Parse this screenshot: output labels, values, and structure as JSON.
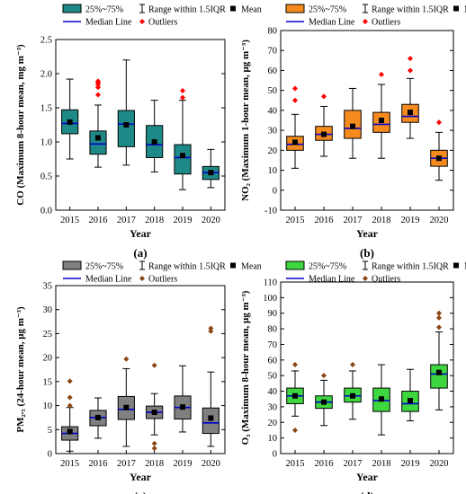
{
  "legend_labels": {
    "box": "25%~75%",
    "range": "Range within 1.5IQR",
    "mean": "Mean",
    "median": "Median Line",
    "outliers": "Outliers"
  },
  "chart_data": [
    {
      "type": "box",
      "panel_label": "(a)",
      "xlabel": "Year",
      "ylabel": "CO (Maximum 8-hour mean, mg m⁻³)",
      "categories": [
        "2015",
        "2016",
        "2017",
        "2018",
        "2019",
        "2020"
      ],
      "ylim": [
        0.0,
        2.5
      ],
      "yticks": [
        "0.0",
        "0.5",
        "1.0",
        "1.5",
        "2.0",
        "2.5"
      ],
      "colors": {
        "box": "#1e8a87",
        "median": "#0000cc",
        "outlier": "#ff0000"
      },
      "boxes": [
        {
          "min": 0.75,
          "q1": 1.12,
          "median": 1.27,
          "q3": 1.47,
          "max": 1.92,
          "mean": 1.29,
          "outliers": []
        },
        {
          "min": 0.63,
          "q1": 0.82,
          "median": 0.97,
          "q3": 1.16,
          "max": 1.54,
          "mean": 1.06,
          "outliers": [
            1.69,
            1.8,
            1.84,
            1.87,
            1.89
          ]
        },
        {
          "min": 0.66,
          "q1": 0.93,
          "median": 1.26,
          "q3": 1.46,
          "max": 2.2,
          "mean": 1.25,
          "outliers": []
        },
        {
          "min": 0.56,
          "q1": 0.77,
          "median": 0.96,
          "q3": 1.24,
          "max": 1.61,
          "mean": 1.0,
          "outliers": []
        },
        {
          "min": 0.3,
          "q1": 0.53,
          "median": 0.77,
          "q3": 0.96,
          "max": 1.61,
          "mean": 0.8,
          "outliers": [
            1.65,
            1.75
          ]
        },
        {
          "min": 0.33,
          "q1": 0.45,
          "median": 0.55,
          "q3": 0.64,
          "max": 0.89,
          "mean": 0.55,
          "outliers": []
        }
      ]
    },
    {
      "type": "box",
      "panel_label": "(b)",
      "xlabel": "Year",
      "ylabel": "NO₂ (Maximum 1-hour mean, μg m⁻³)",
      "categories": [
        "2015",
        "2016",
        "2017",
        "2018",
        "2019",
        "2020"
      ],
      "ylim": [
        -10,
        80
      ],
      "yticks": [
        "-10",
        "0",
        "10",
        "20",
        "30",
        "40",
        "50",
        "60",
        "70",
        "80"
      ],
      "colors": {
        "box": "#f58a1f",
        "median": "#0000cc",
        "outlier": "#ff0000"
      },
      "boxes": [
        {
          "min": 11,
          "q1": 20,
          "median": 23,
          "q3": 27,
          "max": 38,
          "mean": 24,
          "outliers": [
            45,
            51
          ]
        },
        {
          "min": 17,
          "q1": 25,
          "median": 28,
          "q3": 32,
          "max": 42,
          "mean": 28,
          "outliers": [
            47
          ]
        },
        {
          "min": 16,
          "q1": 26,
          "median": 31,
          "q3": 40,
          "max": 51,
          "mean": 32,
          "outliers": []
        },
        {
          "min": 16,
          "q1": 29,
          "median": 33,
          "q3": 39,
          "max": 53,
          "mean": 35,
          "outliers": [
            58
          ]
        },
        {
          "min": 26,
          "q1": 34,
          "median": 37,
          "q3": 43,
          "max": 56,
          "mean": 39,
          "outliers": [
            60,
            66
          ]
        },
        {
          "min": 5,
          "q1": 12,
          "median": 16,
          "q3": 20,
          "max": 29,
          "mean": 16,
          "outliers": [
            34
          ]
        }
      ]
    },
    {
      "type": "box",
      "panel_label": "(c)",
      "xlabel": "Year",
      "ylabel": "PM₂.₅ (24-hour mean, μg m⁻³)",
      "categories": [
        "2015",
        "2016",
        "2017",
        "2018",
        "2019",
        "2020"
      ],
      "ylim": [
        0,
        35
      ],
      "yticks": [
        "0",
        "5",
        "10",
        "15",
        "20",
        "25",
        "30",
        "35"
      ],
      "colors": {
        "box": "#808080",
        "median": "#0000cc",
        "outlier": "#8b4513"
      },
      "boxes": [
        {
          "min": 0.5,
          "q1": 2.8,
          "median": 4.2,
          "q3": 5.6,
          "max": 9.6,
          "mean": 4.6,
          "outliers": [
            10.0,
            11.7,
            15.1
          ]
        },
        {
          "min": 3.2,
          "q1": 5.8,
          "median": 7.5,
          "q3": 9.0,
          "max": 11.6,
          "mean": 7.5,
          "outliers": []
        },
        {
          "min": 1.5,
          "q1": 7.1,
          "median": 9.2,
          "q3": 11.9,
          "max": 17.7,
          "mean": 9.6,
          "outliers": [
            19.7
          ]
        },
        {
          "min": 3.9,
          "q1": 7.3,
          "median": 8.6,
          "q3": 9.9,
          "max": 12.5,
          "mean": 8.6,
          "outliers": [
            1.1,
            2.1,
            18.4
          ]
        },
        {
          "min": 4.5,
          "q1": 7.2,
          "median": 9.6,
          "q3": 12.0,
          "max": 18.3,
          "mean": 9.7,
          "outliers": []
        },
        {
          "min": 1.5,
          "q1": 4.2,
          "median": 6.4,
          "q3": 9.5,
          "max": 17.0,
          "mean": 7.4,
          "outliers": [
            25.5,
            26.1
          ]
        }
      ]
    },
    {
      "type": "box",
      "panel_label": "(d)",
      "xlabel": "Year",
      "ylabel": "O₃ (Maximum 8-hour mean, μg m⁻³)",
      "categories": [
        "2015",
        "2016",
        "2017",
        "2018",
        "2019",
        "2020"
      ],
      "ylim": [
        0,
        110
      ],
      "yticks": [
        "0",
        "10",
        "20",
        "30",
        "40",
        "50",
        "60",
        "70",
        "80",
        "90",
        "100",
        "110"
      ],
      "colors": {
        "box": "#3fd73f",
        "median": "#0000cc",
        "outlier": "#8b4513"
      },
      "boxes": [
        {
          "min": 24,
          "q1": 32,
          "median": 37,
          "q3": 42,
          "max": 53,
          "mean": 37,
          "outliers": [
            15,
            57
          ]
        },
        {
          "min": 18,
          "q1": 29,
          "median": 33,
          "q3": 37,
          "max": 47,
          "mean": 33,
          "outliers": [
            50
          ]
        },
        {
          "min": 22,
          "q1": 33,
          "median": 37,
          "q3": 42,
          "max": 53,
          "mean": 37,
          "outliers": [
            57
          ]
        },
        {
          "min": 12,
          "q1": 27,
          "median": 34,
          "q3": 42,
          "max": 57,
          "mean": 35,
          "outliers": []
        },
        {
          "min": 21,
          "q1": 27,
          "median": 32,
          "q3": 40,
          "max": 54,
          "mean": 34,
          "outliers": []
        },
        {
          "min": 28,
          "q1": 42,
          "median": 51,
          "q3": 57,
          "max": 78,
          "mean": 52,
          "outliers": [
            81,
            87,
            90
          ]
        }
      ]
    }
  ]
}
